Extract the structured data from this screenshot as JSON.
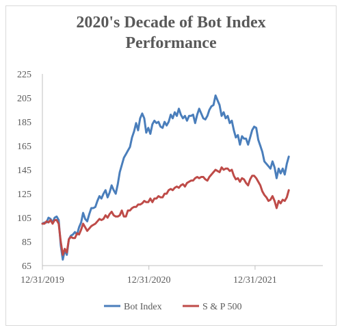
{
  "colors": {
    "bot": "#4a7ebb",
    "sp": "#be4b48",
    "axis": "#bfbfbf",
    "text": "#595959"
  },
  "chart_data": {
    "type": "line",
    "title_line1": "2020's Decade of Bot Index",
    "title_line2": "Performance",
    "ylim": [
      65,
      225
    ],
    "yticks": [
      65,
      85,
      105,
      125,
      145,
      165,
      185,
      205,
      225
    ],
    "x_range_days": [
      0,
      964
    ],
    "xticks": [
      {
        "label": "12/31/2019",
        "day": 0
      },
      {
        "label": "12/31/2020",
        "day": 366
      },
      {
        "label": "12/31/2021",
        "day": 731
      }
    ],
    "legend": "bottom",
    "series": [
      {
        "name": "Bot Index",
        "color": "#4a7ebb",
        "points": [
          [
            0,
            100
          ],
          [
            7,
            101
          ],
          [
            14,
            101
          ],
          [
            21,
            105
          ],
          [
            28,
            104
          ],
          [
            35,
            101
          ],
          [
            42,
            105
          ],
          [
            49,
            106
          ],
          [
            56,
            103
          ],
          [
            63,
            82
          ],
          [
            70,
            70
          ],
          [
            77,
            78
          ],
          [
            84,
            74
          ],
          [
            91,
            87
          ],
          [
            98,
            90
          ],
          [
            105,
            91
          ],
          [
            112,
            93
          ],
          [
            119,
            91
          ],
          [
            126,
            97
          ],
          [
            133,
            101
          ],
          [
            140,
            109
          ],
          [
            147,
            104
          ],
          [
            154,
            102
          ],
          [
            161,
            108
          ],
          [
            168,
            113
          ],
          [
            175,
            113
          ],
          [
            182,
            114
          ],
          [
            189,
            119
          ],
          [
            196,
            123
          ],
          [
            203,
            121
          ],
          [
            210,
            125
          ],
          [
            217,
            128
          ],
          [
            224,
            122
          ],
          [
            231,
            126
          ],
          [
            238,
            132
          ],
          [
            245,
            128
          ],
          [
            252,
            125
          ],
          [
            259,
            133
          ],
          [
            266,
            143
          ],
          [
            273,
            149
          ],
          [
            280,
            155
          ],
          [
            287,
            158
          ],
          [
            294,
            161
          ],
          [
            301,
            164
          ],
          [
            308,
            172
          ],
          [
            315,
            177
          ],
          [
            322,
            184
          ],
          [
            329,
            178
          ],
          [
            336,
            188
          ],
          [
            343,
            192
          ],
          [
            350,
            188
          ],
          [
            357,
            176
          ],
          [
            364,
            180
          ],
          [
            371,
            175
          ],
          [
            378,
            183
          ],
          [
            385,
            186
          ],
          [
            392,
            184
          ],
          [
            399,
            185
          ],
          [
            406,
            181
          ],
          [
            413,
            180
          ],
          [
            420,
            185
          ],
          [
            427,
            182
          ],
          [
            434,
            185
          ],
          [
            441,
            191
          ],
          [
            448,
            188
          ],
          [
            455,
            193
          ],
          [
            462,
            190
          ],
          [
            469,
            196
          ],
          [
            476,
            191
          ],
          [
            483,
            188
          ],
          [
            490,
            190
          ],
          [
            497,
            186
          ],
          [
            504,
            190
          ],
          [
            511,
            190
          ],
          [
            518,
            191
          ],
          [
            525,
            184
          ],
          [
            532,
            191
          ],
          [
            539,
            196
          ],
          [
            546,
            192
          ],
          [
            553,
            188
          ],
          [
            560,
            187
          ],
          [
            567,
            190
          ],
          [
            574,
            195
          ],
          [
            581,
            198
          ],
          [
            588,
            199
          ],
          [
            595,
            207
          ],
          [
            602,
            203
          ],
          [
            609,
            199
          ],
          [
            616,
            190
          ],
          [
            623,
            193
          ],
          [
            630,
            188
          ],
          [
            637,
            190
          ],
          [
            644,
            184
          ],
          [
            651,
            186
          ],
          [
            658,
            178
          ],
          [
            665,
            172
          ],
          [
            672,
            174
          ],
          [
            679,
            166
          ],
          [
            686,
            173
          ],
          [
            693,
            171
          ],
          [
            700,
            171
          ],
          [
            707,
            166
          ],
          [
            714,
            172
          ],
          [
            721,
            178
          ],
          [
            728,
            181
          ],
          [
            735,
            180
          ],
          [
            742,
            170
          ],
          [
            749,
            165
          ],
          [
            756,
            160
          ],
          [
            763,
            152
          ],
          [
            770,
            150
          ],
          [
            777,
            148
          ],
          [
            784,
            146
          ],
          [
            791,
            152
          ],
          [
            798,
            147
          ],
          [
            805,
            138
          ],
          [
            812,
            146
          ],
          [
            819,
            142
          ],
          [
            826,
            146
          ],
          [
            833,
            141
          ],
          [
            840,
            150
          ],
          [
            847,
            156
          ]
        ]
      },
      {
        "name": "S & P 500",
        "color": "#be4b48",
        "points": [
          [
            0,
            100
          ],
          [
            7,
            100
          ],
          [
            14,
            102
          ],
          [
            21,
            101
          ],
          [
            28,
            103
          ],
          [
            35,
            100
          ],
          [
            42,
            103
          ],
          [
            49,
            103
          ],
          [
            56,
            100
          ],
          [
            63,
            85
          ],
          [
            70,
            74
          ],
          [
            77,
            79
          ],
          [
            84,
            76
          ],
          [
            91,
            87
          ],
          [
            98,
            89
          ],
          [
            105,
            88
          ],
          [
            112,
            88
          ],
          [
            119,
            92
          ],
          [
            126,
            91
          ],
          [
            133,
            95
          ],
          [
            140,
            100
          ],
          [
            147,
            97
          ],
          [
            154,
            94
          ],
          [
            161,
            96
          ],
          [
            168,
            98
          ],
          [
            175,
            99
          ],
          [
            182,
            100
          ],
          [
            189,
            102
          ],
          [
            196,
            104
          ],
          [
            203,
            103
          ],
          [
            210,
            104
          ],
          [
            217,
            107
          ],
          [
            224,
            105
          ],
          [
            231,
            108
          ],
          [
            238,
            110
          ],
          [
            245,
            107
          ],
          [
            252,
            106
          ],
          [
            259,
            106
          ],
          [
            266,
            107
          ],
          [
            273,
            111
          ],
          [
            280,
            106
          ],
          [
            287,
            106
          ],
          [
            294,
            111
          ],
          [
            301,
            111
          ],
          [
            308,
            113
          ],
          [
            315,
            114
          ],
          [
            322,
            114
          ],
          [
            329,
            116
          ],
          [
            336,
            116
          ],
          [
            343,
            117
          ],
          [
            350,
            119
          ],
          [
            357,
            118
          ],
          [
            364,
            118
          ],
          [
            371,
            121
          ],
          [
            378,
            118
          ],
          [
            385,
            121
          ],
          [
            392,
            121
          ],
          [
            399,
            123
          ],
          [
            406,
            122
          ],
          [
            413,
            122
          ],
          [
            420,
            125
          ],
          [
            427,
            125
          ],
          [
            434,
            128
          ],
          [
            441,
            129
          ],
          [
            448,
            128
          ],
          [
            455,
            130
          ],
          [
            462,
            131
          ],
          [
            469,
            130
          ],
          [
            476,
            132
          ],
          [
            483,
            133
          ],
          [
            490,
            131
          ],
          [
            497,
            134
          ],
          [
            504,
            135
          ],
          [
            511,
            136
          ],
          [
            518,
            136
          ],
          [
            525,
            138
          ],
          [
            532,
            139
          ],
          [
            539,
            138
          ],
          [
            546,
            139
          ],
          [
            553,
            139
          ],
          [
            560,
            137
          ],
          [
            567,
            136
          ],
          [
            574,
            139
          ],
          [
            581,
            141
          ],
          [
            588,
            143
          ],
          [
            595,
            145
          ],
          [
            602,
            144
          ],
          [
            609,
            143
          ],
          [
            616,
            147
          ],
          [
            623,
            145
          ],
          [
            630,
            146
          ],
          [
            637,
            146
          ],
          [
            644,
            144
          ],
          [
            651,
            145
          ],
          [
            658,
            140
          ],
          [
            665,
            137
          ],
          [
            672,
            138
          ],
          [
            679,
            135
          ],
          [
            686,
            138
          ],
          [
            693,
            137
          ],
          [
            700,
            134
          ],
          [
            707,
            132
          ],
          [
            714,
            137
          ],
          [
            721,
            140
          ],
          [
            728,
            140
          ],
          [
            735,
            138
          ],
          [
            742,
            135
          ],
          [
            749,
            132
          ],
          [
            756,
            127
          ],
          [
            763,
            124
          ],
          [
            770,
            122
          ],
          [
            777,
            119
          ],
          [
            784,
            120
          ],
          [
            791,
            123
          ],
          [
            798,
            119
          ],
          [
            805,
            113
          ],
          [
            812,
            119
          ],
          [
            819,
            117
          ],
          [
            826,
            120
          ],
          [
            833,
            119
          ],
          [
            840,
            122
          ],
          [
            847,
            128
          ]
        ]
      }
    ]
  }
}
